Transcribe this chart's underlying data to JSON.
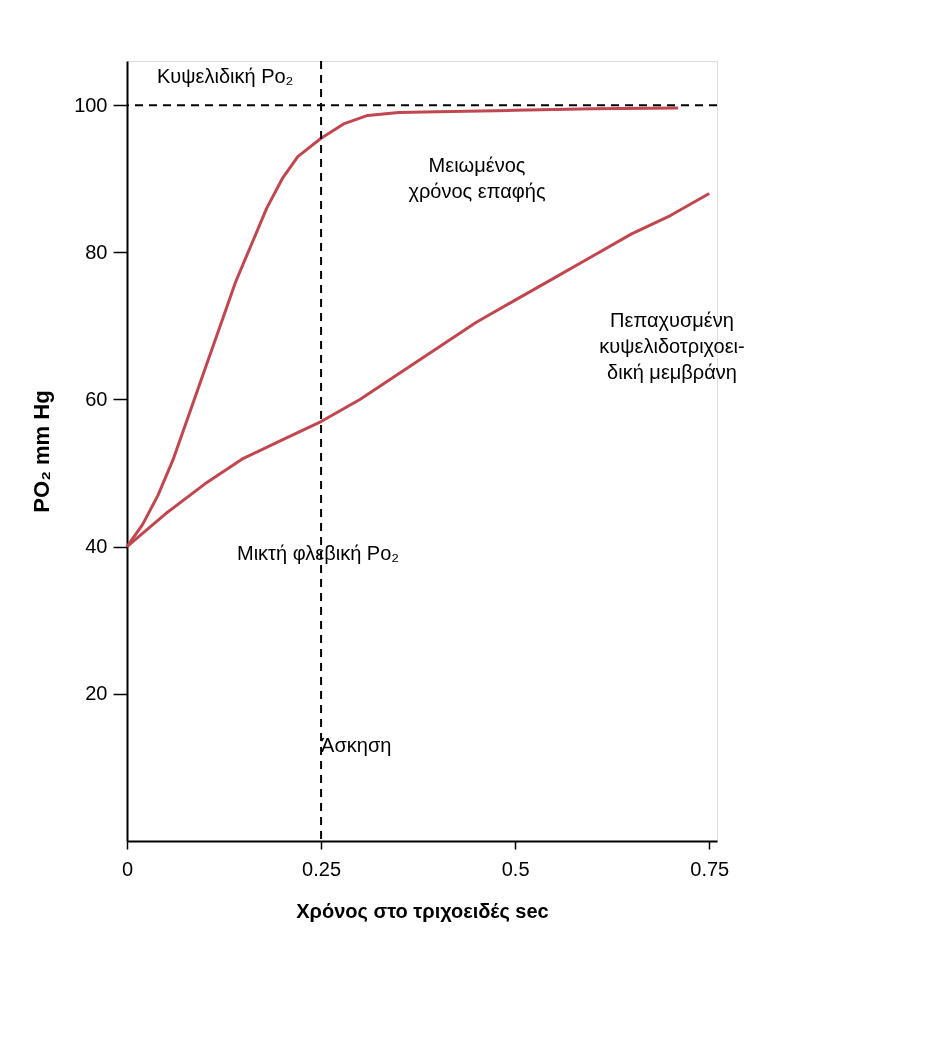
{
  "chart_data": {
    "type": "line",
    "xlabel": "Χρόνος στο τριχοειδές sec",
    "ylabel": "PO₂ mm Hg",
    "xlim": [
      0,
      0.76
    ],
    "ylim": [
      0,
      106
    ],
    "xticks": [
      0,
      0.25,
      0.5,
      0.75
    ],
    "yticks": [
      20,
      40,
      60,
      80,
      100
    ],
    "grid": false,
    "legend": false,
    "marker": "none",
    "line_style": "solid",
    "series": [
      {
        "color": "#c0474f",
        "x": [
          0,
          0.02,
          0.04,
          0.06,
          0.08,
          0.1,
          0.12,
          0.14,
          0.16,
          0.18,
          0.2,
          0.22,
          0.25,
          0.28,
          0.31,
          0.35,
          0.4,
          0.5,
          0.6,
          0.71
        ],
        "values": [
          40,
          43,
          47,
          52,
          58,
          64,
          70,
          76,
          81,
          86,
          90,
          93,
          95.5,
          97.5,
          98.6,
          99,
          99.1,
          99.3,
          99.5,
          99.6
        ]
      },
      {
        "color": "#c0474f",
        "x": [
          0,
          0.05,
          0.1,
          0.15,
          0.2,
          0.25,
          0.3,
          0.35,
          0.4,
          0.45,
          0.5,
          0.55,
          0.6,
          0.65,
          0.7,
          0.75
        ],
        "values": [
          40,
          44.5,
          48.5,
          52,
          54.5,
          57,
          60,
          63.5,
          67,
          70.5,
          73.5,
          76.5,
          79.5,
          82.5,
          85,
          88
        ]
      }
    ],
    "ref_lines": [
      {
        "axis": "y",
        "value": 100,
        "label": "Κυψελιδική Po₂",
        "line_style": "dashed",
        "color": "#000000"
      },
      {
        "axis": "x",
        "value": 0.25,
        "label": "Άσκηση",
        "line_style": "dashed",
        "color": "#000000"
      }
    ],
    "annotations": [
      "Μειωμένος\nχρόνος επαφής",
      "Πεπαχυσμένη\nκυψελιδοτριχοει-\nδική μεμβράνη",
      "Μικτή φλεβική Po₂"
    ]
  }
}
